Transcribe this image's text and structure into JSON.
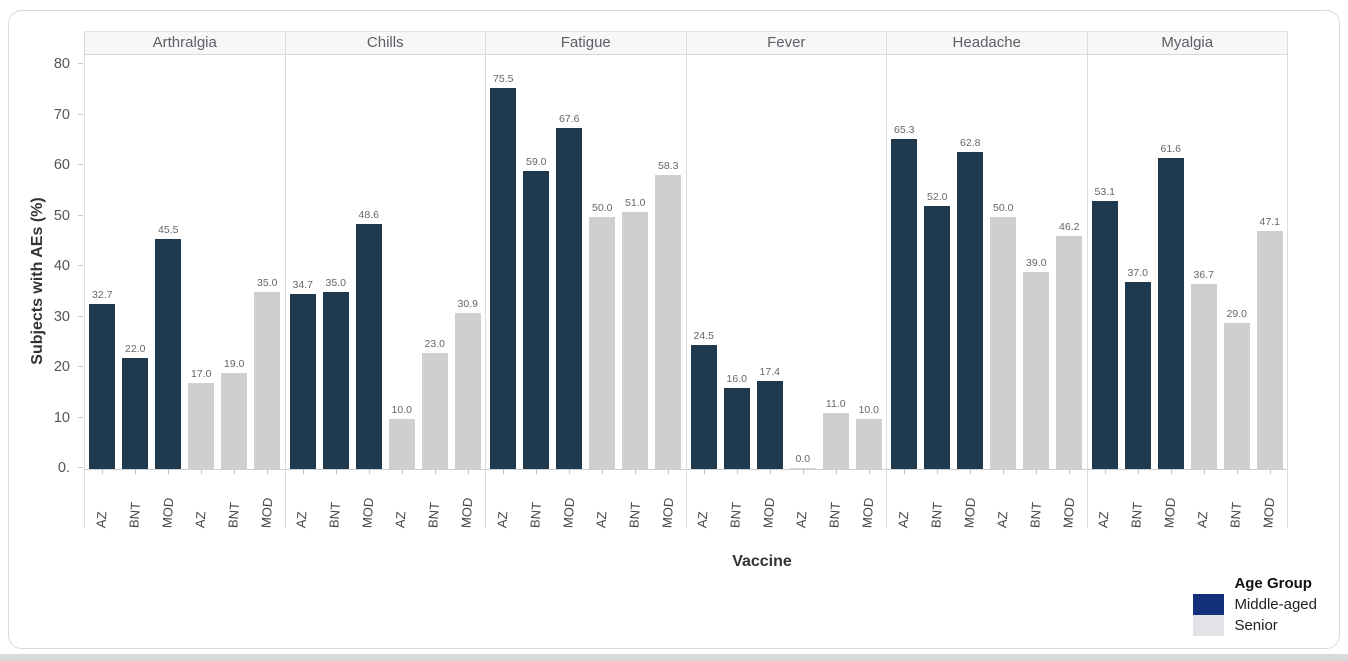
{
  "chart_data": {
    "type": "bar",
    "title": "",
    "xlabel": "Vaccine",
    "ylabel": "Subjects with AEs (%)",
    "ylim": [
      0,
      82
    ],
    "grid": false,
    "yticks": [
      {
        "value": 80,
        "label": "80"
      },
      {
        "value": 70,
        "label": "70"
      },
      {
        "value": 60,
        "label": "60"
      },
      {
        "value": 50,
        "label": "50"
      },
      {
        "value": 40,
        "label": "40"
      },
      {
        "value": 30,
        "label": "30"
      },
      {
        "value": 20,
        "label": "20"
      },
      {
        "value": 10,
        "label": "10"
      },
      {
        "value": 0,
        "label": "0."
      }
    ],
    "vaccines": [
      "AZ",
      "BNT",
      "MOD"
    ],
    "panels": [
      {
        "title": "Arthralgia",
        "middle_aged": [
          32.7,
          22.0,
          45.5
        ],
        "senior": [
          17.0,
          19.0,
          35.0
        ]
      },
      {
        "title": "Chills",
        "middle_aged": [
          34.7,
          35.0,
          48.6
        ],
        "senior": [
          10.0,
          23.0,
          30.9
        ]
      },
      {
        "title": "Fatigue",
        "middle_aged": [
          75.5,
          59.0,
          67.6
        ],
        "senior": [
          50.0,
          51.0,
          58.3
        ]
      },
      {
        "title": "Fever",
        "middle_aged": [
          24.5,
          16.0,
          17.4
        ],
        "senior": [
          0.0,
          11.0,
          10.0
        ]
      },
      {
        "title": "Headache",
        "middle_aged": [
          65.3,
          52.0,
          62.8
        ],
        "senior": [
          50.0,
          39.0,
          46.2
        ]
      },
      {
        "title": "Myalgia",
        "middle_aged": [
          53.1,
          37.0,
          61.6
        ],
        "senior": [
          36.7,
          29.0,
          47.1
        ]
      }
    ],
    "legend": {
      "title": "Age Group",
      "position": "bottom-right",
      "entries": [
        {
          "label": "Middle-aged",
          "color": "#12307b"
        },
        {
          "label": "Senior",
          "color": "#e3e3e7"
        }
      ]
    },
    "colors": {
      "middle_aged_bar": "#1f3a4e",
      "senior_bar": "#cfcfcf",
      "facet_header_bg": "#f7f7f8",
      "card_border": "#d9d9d9"
    }
  }
}
